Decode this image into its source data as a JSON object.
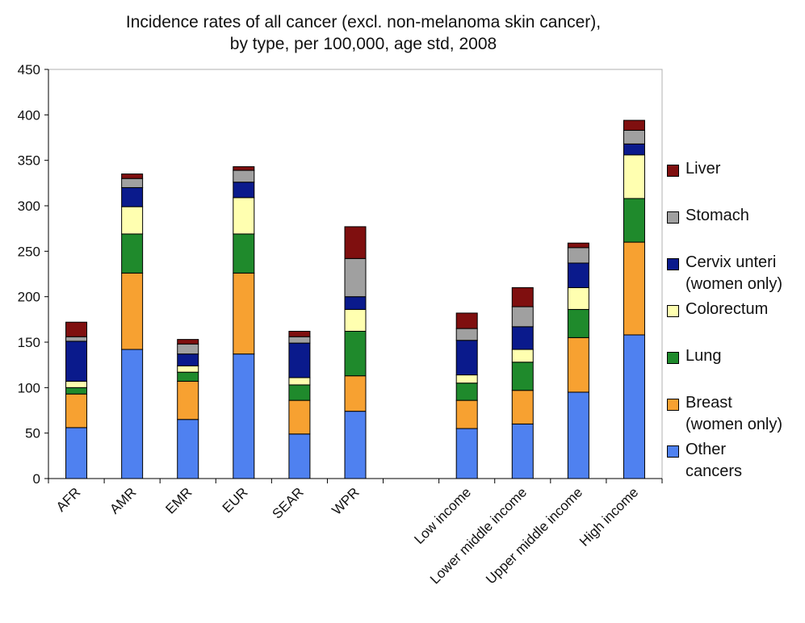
{
  "chart_data": {
    "type": "bar",
    "stacked": true,
    "title": "Incidence rates of all cancer (excl. non-melanoma skin cancer),",
    "subtitle": "by type, per 100,000, age std, 2008",
    "xlabel": "",
    "ylabel": "",
    "ylim": [
      0,
      450
    ],
    "yticks": [
      0,
      50,
      100,
      150,
      200,
      250,
      300,
      350,
      400,
      450
    ],
    "grid": false,
    "legend_position": "right",
    "categories": [
      "AFR",
      "AMR",
      "EMR",
      "EUR",
      "SEAR",
      "WPR",
      "",
      "Low income",
      "Lower middle income",
      "Upper middle income",
      "High income"
    ],
    "series": [
      {
        "name": "Other cancers",
        "color": "#4f81f0",
        "values": [
          56,
          142,
          65,
          137,
          49,
          74,
          null,
          55,
          60,
          95,
          158
        ]
      },
      {
        "name": "Breast (women only)",
        "color": "#f7a131",
        "values": [
          37,
          84,
          42,
          89,
          37,
          39,
          null,
          31,
          37,
          60,
          102
        ]
      },
      {
        "name": "Lung",
        "color": "#1f8a2c",
        "values": [
          7,
          43,
          10,
          43,
          17,
          49,
          null,
          19,
          31,
          31,
          48
        ]
      },
      {
        "name": "Colorectum",
        "color": "#ffffb0",
        "values": [
          7,
          30,
          7,
          40,
          8,
          24,
          null,
          9,
          14,
          24,
          48
        ]
      },
      {
        "name": "Cervix unteri (women only)",
        "color": "#0a1a8c",
        "values": [
          44,
          21,
          13,
          17,
          38,
          14,
          null,
          38,
          25,
          27,
          12
        ]
      },
      {
        "name": "Stomach",
        "color": "#a0a0a0",
        "values": [
          5,
          10,
          11,
          13,
          7,
          42,
          null,
          13,
          22,
          17,
          15
        ]
      },
      {
        "name": "Liver",
        "color": "#7f0f0f",
        "values": [
          16,
          5,
          5,
          4,
          6,
          35,
          null,
          17,
          21,
          5,
          11
        ]
      }
    ]
  },
  "legend_order": [
    "Liver",
    "Stomach",
    "Cervix unteri\n(women only)",
    "Colorectum",
    "Lung",
    "Breast\n(women only)",
    "Other\ncancers"
  ],
  "legend_colors": [
    "#7f0f0f",
    "#a0a0a0",
    "#0a1a8c",
    "#ffffb0",
    "#1f8a2c",
    "#f7a131",
    "#4f81f0"
  ]
}
